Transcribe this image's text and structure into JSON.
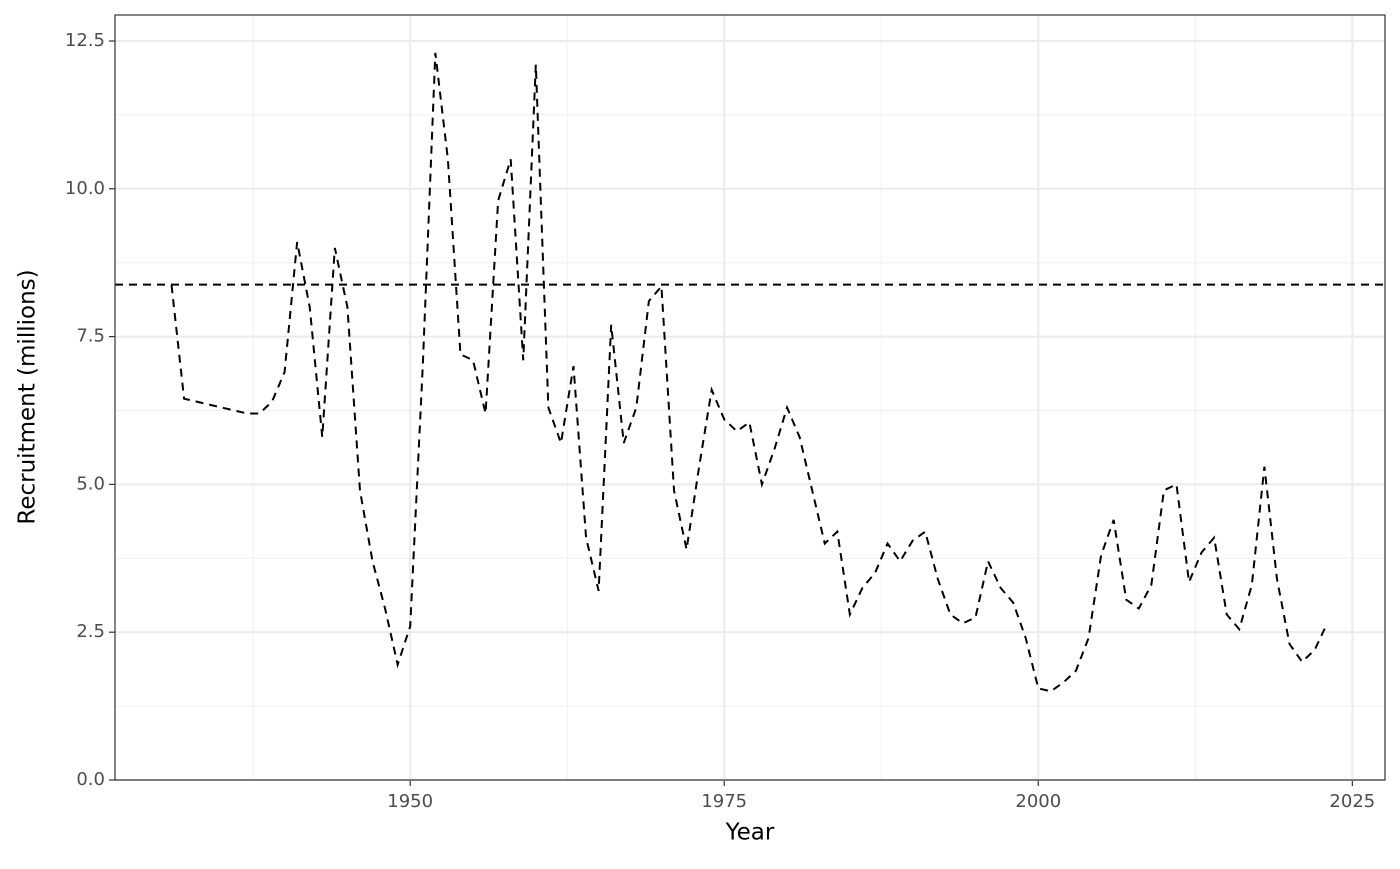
{
  "chart_data": {
    "type": "line",
    "x_label": "Year",
    "y_label": "Recruitment (millions)",
    "x": [
      1931,
      1932,
      1933,
      1934,
      1935,
      1936,
      1937,
      1938,
      1939,
      1940,
      1941,
      1942,
      1943,
      1944,
      1945,
      1946,
      1947,
      1948,
      1949,
      1950,
      1951,
      1952,
      1953,
      1954,
      1955,
      1956,
      1957,
      1958,
      1959,
      1960,
      1961,
      1962,
      1963,
      1964,
      1965,
      1966,
      1967,
      1968,
      1969,
      1970,
      1971,
      1972,
      1973,
      1974,
      1975,
      1976,
      1977,
      1978,
      1979,
      1980,
      1981,
      1982,
      1983,
      1984,
      1985,
      1986,
      1987,
      1988,
      1989,
      1990,
      1991,
      1992,
      1993,
      1994,
      1995,
      1996,
      1997,
      1998,
      1999,
      2000,
      2001,
      2002,
      2003,
      2004,
      2005,
      2006,
      2007,
      2008,
      2009,
      2010,
      2011,
      2012,
      2013,
      2014,
      2015,
      2016,
      2017,
      2018,
      2019,
      2020,
      2021,
      2022,
      2023
    ],
    "series": [
      {
        "color": "#000000",
        "values": [
          8.37,
          6.45,
          6.4,
          6.35,
          6.3,
          6.25,
          6.2,
          6.2,
          6.4,
          6.9,
          9.1,
          8.0,
          5.8,
          9.0,
          8.0,
          4.9,
          3.7,
          2.9,
          1.95,
          2.6,
          7.0,
          12.3,
          10.5,
          7.2,
          7.1,
          6.2,
          9.8,
          10.5,
          7.1,
          12.1,
          6.3,
          5.7,
          7.0,
          4.1,
          3.2,
          7.7,
          5.7,
          6.3,
          8.1,
          8.35,
          4.9,
          3.9,
          5.3,
          6.6,
          6.1,
          5.9,
          6.05,
          5.0,
          5.6,
          6.3,
          5.8,
          4.9,
          4.0,
          4.2,
          2.8,
          3.25,
          3.5,
          4.0,
          3.7,
          4.05,
          4.2,
          3.4,
          2.8,
          2.65,
          2.75,
          3.7,
          3.25,
          3.0,
          2.4,
          1.55,
          1.5,
          1.65,
          1.85,
          2.4,
          3.8,
          4.4,
          3.05,
          2.9,
          3.3,
          4.9,
          5.0,
          3.35,
          3.85,
          4.1,
          2.8,
          2.55,
          3.3,
          5.3,
          3.4,
          2.3,
          2.0,
          2.2,
          2.65
        ]
      }
    ],
    "hline": 8.38,
    "xlim": [
      1926.5,
      2027.6
    ],
    "xticks": [
      1950,
      1975,
      2000,
      2025
    ],
    "ylim": [
      0,
      12.94
    ],
    "yticks": [
      {
        "value": 0,
        "label": "0.0"
      },
      {
        "value": 2.5,
        "label": "2.5"
      },
      {
        "value": 5,
        "label": "5.0"
      },
      {
        "value": 7.5,
        "label": "7.5"
      },
      {
        "value": 10,
        "label": "10.0"
      },
      {
        "value": 12.5,
        "label": "12.5"
      }
    ],
    "grid": true
  }
}
